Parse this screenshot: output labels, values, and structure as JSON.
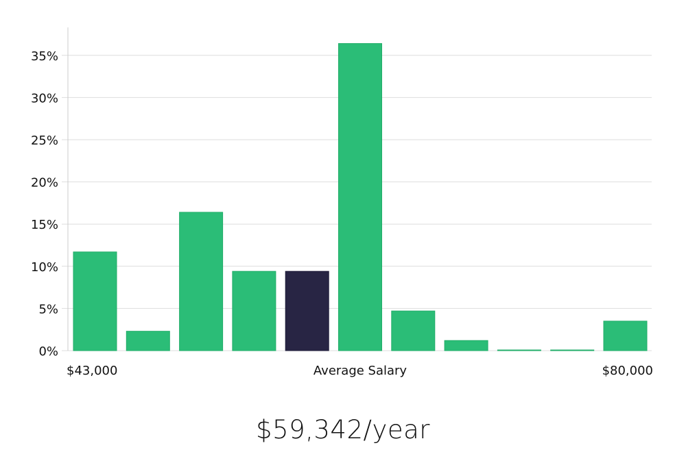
{
  "chart_data": {
    "type": "bar",
    "categories": [
      "$43,000",
      "",
      "",
      "",
      "Average Salary",
      "",
      "",
      "",
      "",
      "",
      "$80,000"
    ],
    "values": [
      11.7,
      2.3,
      16.4,
      9.4,
      9.4,
      36.4,
      4.7,
      1.2,
      0.05,
      0.05,
      3.5
    ],
    "highlight_index": 4,
    "x_labels": {
      "left": "$43,000",
      "center": "Average Salary",
      "right": "$80,000"
    },
    "ylim": [
      0,
      38
    ],
    "y_ticks": [
      0,
      5,
      10,
      15,
      20,
      25,
      30,
      35
    ],
    "y_tick_labels": [
      "0%",
      "5%",
      "10%",
      "15%",
      "20%",
      "25%",
      "30%",
      "35%"
    ],
    "grid": true,
    "colors": {
      "bar": "#2bbd77",
      "highlight": "#282544",
      "grid": "#dddddd",
      "axis": "#cccccc"
    }
  },
  "salary_text": "$59,342/year"
}
